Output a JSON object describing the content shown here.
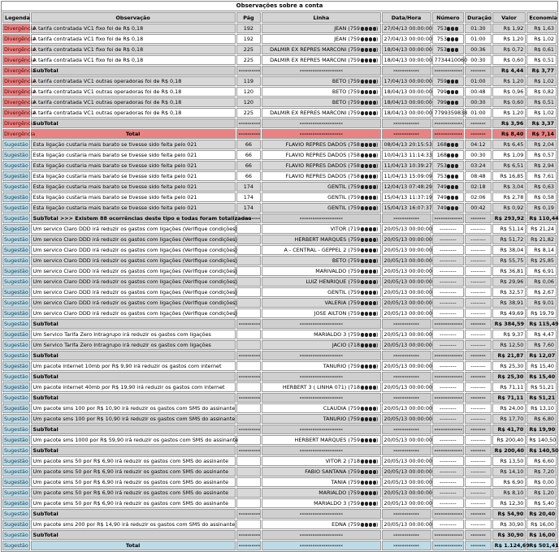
{
  "title": "Observações sobre a conta",
  "headers": [
    "Legenda",
    "Observação",
    "Pág",
    "Linha",
    "Data/Hora",
    "Número",
    "Duração",
    "Valor",
    "Economia"
  ],
  "rows": [
    {
      "k": "div",
      "t": "g",
      "cells": [
        "Divergência",
        "A tarifa contratada VC1 fixo foi de R$ 0,18",
        "192",
        "JEAN (759",
        ")",
        "27/04/13 00:00:00",
        "753",
        "",
        "01:30",
        "R$ 1,92",
        "R$ 1,63"
      ]
    },
    {
      "k": "div",
      "t": "w",
      "cells": [
        "Divergência",
        "A tarifa contratada VC1 fixo foi de R$ 0,18",
        "192",
        "JEAN (759",
        ")",
        "27/04/13 00:00:00",
        "753",
        "",
        "01:00",
        "R$ 1,20",
        "R$ 1,02"
      ]
    },
    {
      "k": "div",
      "t": "g",
      "cells": [
        "Divergência",
        "A tarifa contratada VC1 fixo foi de R$ 0,18",
        "225",
        "DALMIR EX REPRES MARCONI (759",
        ")",
        "18/04/13 00:00:00",
        "753",
        "",
        "00:36",
        "R$ 0,72",
        "R$ 0,61"
      ]
    },
    {
      "k": "div",
      "t": "w",
      "cells": [
        "Divergência",
        "A tarifa contratada VC1 fixo foi de R$ 0,18",
        "225",
        "DALMIR EX REPRES MARCONI (759",
        ")",
        "18/04/13 00:00:00",
        "7734410060",
        "",
        "00:30",
        "R$ 0,60",
        "R$ 0,51"
      ]
    },
    {
      "k": "div",
      "t": "s",
      "cells": [
        "Divergência",
        "SubTotal",
        "----------",
        "--------------------",
        "",
        "------------",
        "-------------",
        "",
        "-------",
        "R$ 4,44",
        "R$ 3,77"
      ]
    },
    {
      "k": "div",
      "t": "g",
      "cells": [
        "Divergência",
        "A tarifa contratada VC1 outras operadoras foi de R$ 0,18",
        "119",
        "BETO (759",
        ")",
        "17/04/13 00:00:00",
        "759",
        "",
        "01:00",
        "R$ 1,20",
        "R$ 1,02"
      ]
    },
    {
      "k": "div",
      "t": "w",
      "cells": [
        "Divergência",
        "A tarifa contratada VC1 outras operadoras foi de R$ 0,18",
        "120",
        "BETO (759",
        ")",
        "18/04/13 00:00:00",
        "799",
        "",
        "00:48",
        "R$ 0,96",
        "R$ 0,82"
      ]
    },
    {
      "k": "div",
      "t": "g",
      "cells": [
        "Divergência",
        "A tarifa contratada VC1 outras operadoras foi de R$ 0,18",
        "120",
        "BETO (759",
        ")",
        "18/04/13 00:00:00",
        "799",
        "",
        "00:30",
        "R$ 0,60",
        "R$ 0,51"
      ]
    },
    {
      "k": "div",
      "t": "w",
      "cells": [
        "Divergência",
        "A tarifa contratada VC1 outras operadoras foi de R$ 0,18",
        "225",
        "DALMIR EX REPRES MARCONI (759",
        ")",
        "18/04/13 00:00:00",
        "7799359838",
        "",
        "01:00",
        "R$ 1,20",
        "R$ 1,02"
      ]
    },
    {
      "k": "div",
      "t": "s",
      "cells": [
        "Divergência",
        "SubTotal",
        "----------",
        "--------------------",
        "",
        "------------",
        "-------------",
        "",
        "-------",
        "R$ 3,96",
        "R$ 3,37"
      ]
    },
    {
      "k": "div",
      "t": "tot-div",
      "cells": [
        "Divergência",
        "Total",
        "----------",
        "--------------------",
        "",
        "------------",
        "-------------",
        "",
        "-------",
        "R$ 8,40",
        "R$ 7,14"
      ]
    },
    {
      "k": "sug",
      "t": "g",
      "cells": [
        "Sugestão",
        "Esta ligação custaria mais barato se tivesse sido feita pelo 021",
        "66",
        "FLAVIO REPRES DADOS (758",
        ")",
        "08/04/13 20:15:53",
        "168",
        "",
        "04:12",
        "R$ 6,45",
        "R$ 2,04"
      ]
    },
    {
      "k": "sug",
      "t": "w",
      "cells": [
        "Sugestão",
        "Esta ligação custaria mais barato se tivesse sido feita pelo 021",
        "66",
        "FLAVIO REPRES DADOS (758",
        ")",
        "10/04/13 11:14:33",
        "168",
        "",
        "00:30",
        "R$ 1,09",
        "R$ 0,57"
      ]
    },
    {
      "k": "sug",
      "t": "g",
      "cells": [
        "Sugestão",
        "Esta ligação custaria mais barato se tivesse sido feita pelo 021",
        "66",
        "FLAVIO REPRES DADOS (758",
        ")",
        "11/04/13 10:39:27",
        "753",
        "",
        "03:24",
        "R$ 6,51",
        "R$ 2,94"
      ]
    },
    {
      "k": "sug",
      "t": "w",
      "cells": [
        "Sugestão",
        "Esta ligação custaria mais barato se tivesse sido feita pelo 021",
        "66",
        "FLAVIO REPRES DADOS (758",
        ")",
        "11/04/13 15:09:09",
        "753",
        "",
        "08:48",
        "R$ 16,85",
        "R$ 7,61"
      ]
    },
    {
      "k": "sug",
      "t": "g",
      "cells": [
        "Sugestão",
        "Esta ligação custaria mais barato se tivesse sido feita pelo 021",
        "174",
        "GENTIL (759",
        ")",
        "12/04/13 07:48:29",
        "749",
        "",
        "02:18",
        "R$ 3,04",
        "R$ 0,63"
      ]
    },
    {
      "k": "sug",
      "t": "w",
      "cells": [
        "Sugestão",
        "Esta ligação custaria mais barato se tivesse sido feita pelo 021",
        "174",
        "GENTIL (759",
        ")",
        "15/04/13 11:37:19",
        "749",
        "",
        "02:06",
        "R$ 2,78",
        "R$ 0,58"
      ]
    },
    {
      "k": "sug",
      "t": "g",
      "cells": [
        "Sugestão",
        "Esta ligação custaria mais barato se tivesse sido feita pelo 021",
        "174",
        "GENTIL (759",
        ")",
        "15/04/13 16:07:37",
        "749",
        "",
        "00:42",
        "R$ 0,92",
        "R$ 0,19"
      ]
    },
    {
      "k": "sug",
      "t": "s",
      "cells": [
        "Sugestão",
        "SubTotal >>> Existem 88 ocorrências deste tipo e todas foram totalizadas",
        "----------",
        "--------------------",
        "",
        "------------",
        "-------------",
        "",
        "-------",
        "R$ 293,92",
        "R$ 110,44"
      ]
    },
    {
      "k": "sug",
      "t": "w",
      "cells": [
        "Sugestão",
        "Um servico Claro DDD irá reduzir os gastos com ligações (Verifique condições)",
        "",
        "VITOR (719",
        ")",
        "20/05/13 00:00:00",
        "---------",
        "",
        "--------",
        "R$ 51,14",
        "R$ 21,24"
      ]
    },
    {
      "k": "sug",
      "t": "g",
      "cells": [
        "Sugestão",
        "Um servico Claro DDD irá reduzir os gastos com ligações (Verifique condições)",
        "",
        "HERBERT MARQUES (759",
        ")",
        "20/05/13 00:00:00",
        "---------",
        "",
        "--------",
        "R$ 51,72",
        "R$ 21,82"
      ]
    },
    {
      "k": "sug",
      "t": "w",
      "cells": [
        "Sugestão",
        "Um servico Claro DDD irá reduzir os gastos com ligações (Verifique condições)",
        "",
        "A - CENTRAL - GEPPEL 2 (759",
        ")",
        "20/05/13 00:00:00",
        "---------",
        "",
        "--------",
        "R$ 38,04",
        "R$ 8,14"
      ]
    },
    {
      "k": "sug",
      "t": "g",
      "cells": [
        "Sugestão",
        "Um servico Claro DDD irá reduzir os gastos com ligações (Verifique condições)",
        "",
        "BETO (759",
        ")",
        "20/05/13 00:00:00",
        "---------",
        "",
        "--------",
        "R$ 55,75",
        "R$ 25,85"
      ]
    },
    {
      "k": "sug",
      "t": "w",
      "cells": [
        "Sugestão",
        "Um servico Claro DDD irá reduzir os gastos com ligações (Verifique condições)",
        "",
        "MARIVALDO (759",
        ")",
        "20/05/13 00:00:00",
        "---------",
        "",
        "--------",
        "R$ 36,81",
        "R$ 6,91"
      ]
    },
    {
      "k": "sug",
      "t": "g",
      "cells": [
        "Sugestão",
        "Um servico Claro DDD irá reduzir os gastos com ligações (Verifique condições)",
        "",
        "LUIZ HENRIQUE (759",
        ")",
        "20/05/13 00:00:00",
        "---------",
        "",
        "--------",
        "R$ 29,96",
        "R$ 0,06"
      ]
    },
    {
      "k": "sug",
      "t": "w",
      "cells": [
        "Sugestão",
        "Um servico Claro DDD irá reduzir os gastos com ligações (Verifique condições)",
        "",
        "GENTIL (759",
        ")",
        "20/05/13 00:00:00",
        "---------",
        "",
        "--------",
        "R$ 32,57",
        "R$ 2,67"
      ]
    },
    {
      "k": "sug",
      "t": "g",
      "cells": [
        "Sugestão",
        "Um servico Claro DDD irá reduzir os gastos com ligações (Verifique condições)",
        "",
        "VALERIA (759",
        ")",
        "20/05/13 00:00:00",
        "---------",
        "",
        "--------",
        "R$ 38,91",
        "R$ 9,01"
      ]
    },
    {
      "k": "sug",
      "t": "w",
      "cells": [
        "Sugestão",
        "Um servico Claro DDD irá reduzir os gastos com ligações (Verifique condições)",
        "",
        "JOSE AILTON (759",
        ")",
        "20/05/13 00:00:00",
        "---------",
        "",
        "--------",
        "R$ 49,69",
        "R$ 19,79"
      ]
    },
    {
      "k": "sug",
      "t": "s",
      "cells": [
        "Sugestão",
        "SubTotal",
        "----------",
        "--------------------",
        "",
        "------------",
        "-------------",
        "",
        "-------",
        "R$ 384,59",
        "R$ 115,49"
      ]
    },
    {
      "k": "sug",
      "t": "w",
      "cells": [
        "Sugestão",
        "Um Servico Tarifa Zero Intragrupo irá reduzir os gastos com ligações",
        "",
        "MARIALDO 3 (759",
        ")",
        "20/05/13 00:00:00",
        "---------",
        "",
        "--------",
        "R$ 9,37",
        "R$ 4,47"
      ]
    },
    {
      "k": "sug",
      "t": "g",
      "cells": [
        "Sugestão",
        "Um Servico Tarifa Zero Intragrupo irá reduzir os gastos com ligações",
        "",
        "JACIO (718",
        ")",
        "20/05/13 00:00:00",
        "---------",
        "",
        "--------",
        "R$ 12,50",
        "R$ 7,60"
      ]
    },
    {
      "k": "sug",
      "t": "s",
      "cells": [
        "Sugestão",
        "SubTotal",
        "----------",
        "--------------------",
        "",
        "------------",
        "-------------",
        "",
        "-------",
        "R$ 21,87",
        "R$ 12,07"
      ]
    },
    {
      "k": "sug",
      "t": "w",
      "cells": [
        "Sugestão",
        "Um pacote internet 10mb por R$ 9,90 irá reduzir os gastos com internet",
        "",
        "TANURIO (759",
        ")",
        "20/05/13 00:00:00",
        "---------",
        "",
        "--------",
        "R$ 25,30",
        "R$ 15,40"
      ]
    },
    {
      "k": "sug",
      "t": "s",
      "cells": [
        "Sugestão",
        "SubTotal",
        "----------",
        "--------------------",
        "",
        "------------",
        "-------------",
        "",
        "-------",
        "R$ 25,30",
        "R$ 15,40"
      ]
    },
    {
      "k": "sug",
      "t": "w",
      "cells": [
        "Sugestão",
        "Um pacote internet 40mb por R$ 19,90 irá reduzir os gastos com internet",
        "",
        "HERBERT 3 ( LINHA 071) (718",
        ")",
        "20/05/13 00:00:00",
        "---------",
        "",
        "--------",
        "R$ 71,11",
        "R$ 51,21"
      ]
    },
    {
      "k": "sug",
      "t": "s",
      "cells": [
        "Sugestão",
        "SubTotal",
        "----------",
        "--------------------",
        "",
        "------------",
        "-------------",
        "",
        "-------",
        "R$ 71,11",
        "R$ 51,21"
      ]
    },
    {
      "k": "sug",
      "t": "w",
      "cells": [
        "Sugestão",
        "Um pacote sms 100 por R$ 10,90 irá reduzir os gastos com SMS do assinante",
        "",
        "CLAUDIA (759",
        ")",
        "20/05/13 00:00:00",
        "---------",
        "",
        "--------",
        "R$ 24,00",
        "R$ 13,10"
      ]
    },
    {
      "k": "sug",
      "t": "g",
      "cells": [
        "Sugestão",
        "Um pacote sms 100 por R$ 10,90 irá reduzir os gastos com SMS do assinante",
        "",
        "TANURIO (759",
        ")",
        "20/05/13 00:00:00",
        "---------",
        "",
        "--------",
        "R$ 17,70",
        "R$ 6,80"
      ]
    },
    {
      "k": "sug",
      "t": "s",
      "cells": [
        "Sugestão",
        "SubTotal",
        "----------",
        "--------------------",
        "",
        "------------",
        "-------------",
        "",
        "-------",
        "R$ 41,70",
        "R$ 19,90"
      ]
    },
    {
      "k": "sug",
      "t": "w",
      "cells": [
        "Sugestão",
        "Um pacote sms 1000 por R$ 59,90 irá reduzir os gastos com SMS do assinante",
        "",
        "HERBERT MARQUES (759",
        ")",
        "20/05/13 00:00:00",
        "---------",
        "",
        "--------",
        "R$ 200,40",
        "R$ 140,50"
      ]
    },
    {
      "k": "sug",
      "t": "s",
      "cells": [
        "Sugestão",
        "SubTotal",
        "----------",
        "--------------------",
        "",
        "------------",
        "-------------",
        "",
        "-------",
        "R$ 200,40",
        "R$ 140,50"
      ]
    },
    {
      "k": "sug",
      "t": "w",
      "cells": [
        "Sugestão",
        "Um pacote sms 50 por R$ 6,90 irá reduzir os gastos com SMS do assinante",
        "",
        "VITOR 2 (718",
        ")",
        "20/05/13 00:00:00",
        "---------",
        "",
        "--------",
        "R$ 13,50",
        "R$ 6,60"
      ]
    },
    {
      "k": "sug",
      "t": "g",
      "cells": [
        "Sugestão",
        "Um pacote sms 50 por R$ 6,90 irá reduzir os gastos com SMS do assinante",
        "",
        "FABIO SANTANA (759",
        ")",
        "20/05/13 00:00:00",
        "---------",
        "",
        "--------",
        "R$ 14,10",
        "R$ 7,20"
      ]
    },
    {
      "k": "sug",
      "t": "w",
      "cells": [
        "Sugestão",
        "Um pacote sms 50 por R$ 6,90 irá reduzir os gastos com SMS do assinante",
        "",
        "TANIA (759",
        ")",
        "20/05/13 00:00:00",
        "---------",
        "",
        "--------",
        "R$ 6,90",
        "R$ 0,00"
      ]
    },
    {
      "k": "sug",
      "t": "g",
      "cells": [
        "Sugestão",
        "Um pacote sms 50 por R$ 6,90 irá reduzir os gastos com SMS do assinante",
        "",
        "MARIALDO (759",
        ")",
        "20/05/13 00:00:00",
        "---------",
        "",
        "--------",
        "R$ 8,10",
        "R$ 1,20"
      ]
    },
    {
      "k": "sug",
      "t": "w",
      "cells": [
        "Sugestão",
        "Um pacote sms 50 por R$ 6,90 irá reduzir os gastos com SMS do assinante",
        "",
        "MARIALDO 3 (759",
        ")",
        "20/05/13 00:00:00",
        "---------",
        "",
        "--------",
        "R$ 12,30",
        "R$ 5,40"
      ]
    },
    {
      "k": "sug",
      "t": "s",
      "cells": [
        "Sugestão",
        "SubTotal",
        "----------",
        "--------------------",
        "",
        "------------",
        "-------------",
        "",
        "-------",
        "R$ 54,90",
        "R$ 20,40"
      ]
    },
    {
      "k": "sug",
      "t": "w",
      "cells": [
        "Sugestão",
        "Um pacote sms 200 por R$ 14,90 irá reduzir os gastos com SMS do assinante",
        "",
        "EDNA (759",
        ")",
        "20/05/13 00:00:00",
        "---------",
        "",
        "--------",
        "R$ 30,90",
        "R$ 16,00"
      ]
    },
    {
      "k": "sug",
      "t": "s",
      "cells": [
        "Sugestão",
        "SubTotal",
        "----------",
        "--------------------",
        "",
        "------------",
        "-------------",
        "",
        "-------",
        "R$ 30,90",
        "R$ 16,00"
      ]
    },
    {
      "k": "sug",
      "t": "tot-sug",
      "cells": [
        "Sugestão",
        "Total",
        "----------",
        "--------------------",
        "",
        "------------",
        "-------------",
        "",
        "-------",
        "R$ 1.124,69",
        "R$ 501,41"
      ]
    }
  ]
}
